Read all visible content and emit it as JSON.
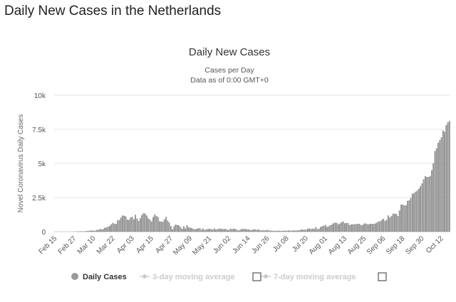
{
  "page": {
    "title": "Daily New Cases in the Netherlands"
  },
  "chart_data": {
    "type": "bar",
    "title": "Daily New Cases",
    "subtitle": [
      "Cases per Day",
      "Data as of 0:00 GMT+0"
    ],
    "ylabel": "Novel Coronavirus Daily Cases",
    "xlabel": "",
    "ylim": [
      0,
      10000
    ],
    "yticks": [
      0,
      2500,
      5000,
      7500,
      10000
    ],
    "ytick_labels": [
      "0",
      "2.5k",
      "5k",
      "7.5k",
      "10k"
    ],
    "grid": true,
    "bar_color": "#999999",
    "start_date": "Feb 15",
    "xtick_labels": [
      "Feb 15",
      "Feb 27",
      "Mar 10",
      "Mar 22",
      "Apr 03",
      "Apr 15",
      "Apr 27",
      "May 09",
      "May 21",
      "Jun 02",
      "Jun 14",
      "Jun 26",
      "Jul 08",
      "Jul 20",
      "Aug 01",
      "Aug 13",
      "Aug 25",
      "Sep 06",
      "Sep 18",
      "Sep 30",
      "Oct 12"
    ],
    "legend": {
      "placement": "bottom",
      "items": [
        {
          "label": "Daily Cases",
          "active": true,
          "color": "#999999"
        },
        {
          "label": "3-day moving average",
          "active": false,
          "color": "#cccccc"
        },
        {
          "label": "7-day moving average",
          "active": false,
          "color": "#cccccc"
        }
      ]
    },
    "series": [
      {
        "name": "Daily Cases",
        "values": [
          0,
          0,
          0,
          0,
          0,
          0,
          0,
          0,
          0,
          0,
          0,
          0,
          1,
          0,
          1,
          5,
          8,
          6,
          10,
          15,
          44,
          46,
          60,
          77,
          56,
          61,
          121,
          111,
          190,
          155,
          176,
          278,
          292,
          346,
          409,
          534,
          637,
          573,
          545,
          811,
          852,
          1019,
          1172,
          1159,
          1104,
          884,
          845,
          1019,
          1083,
          904,
          1224,
          952,
          777,
          969,
          1213,
          1335,
          1316,
          1174,
          964,
          868,
          734,
          1061,
          1235,
          1140,
          1066,
          750,
          729,
          708,
          887,
          1066,
          803,
          655,
          400,
          171,
          386,
          514,
          475,
          445,
          335,
          199,
          386,
          232,
          455,
          319,
          270,
          245,
          196,
          161,
          199,
          228,
          244,
          125,
          220,
          108,
          164,
          185,
          194,
          178,
          136,
          232,
          137,
          172,
          209,
          212,
          164,
          194,
          184,
          131,
          106,
          213,
          167,
          214,
          183,
          129,
          80,
          120,
          198,
          184,
          196,
          152,
          161,
          127,
          102,
          143,
          171,
          112,
          133,
          118,
          75,
          108,
          72,
          93,
          124,
          77,
          73,
          52,
          54,
          47,
          45,
          68,
          41,
          49,
          53,
          62,
          57,
          78,
          70,
          48,
          99,
          64,
          69,
          91,
          102,
          141,
          134,
          130,
          136,
          193,
          223,
          174,
          215,
          182,
          312,
          171,
          196,
          332,
          392,
          419,
          491,
          339,
          384,
          454,
          512,
          599,
          650,
          628,
          524,
          591,
          688,
          732,
          603,
          621,
          612,
          470,
          520,
          525,
          534,
          548,
          547,
          570,
          480,
          476,
          579,
          594,
          535,
          529,
          560,
          562,
          549,
          595,
          651,
          742,
          748,
          855,
          931,
          781,
          862,
          1177,
          1026,
          1142,
          1304,
          1303,
          1288,
          1140,
          1542,
          1972,
          1979,
          1898,
          1919,
          2242,
          2289,
          2456,
          2777,
          2800,
          2918,
          3000,
          3143,
          3320,
          3530,
          3830,
          4050,
          4000,
          3990,
          4070,
          4500,
          5000,
          5900,
          6100,
          6500,
          6700,
          6900,
          7400,
          7300,
          7800,
          8000,
          8100
        ]
      }
    ]
  }
}
